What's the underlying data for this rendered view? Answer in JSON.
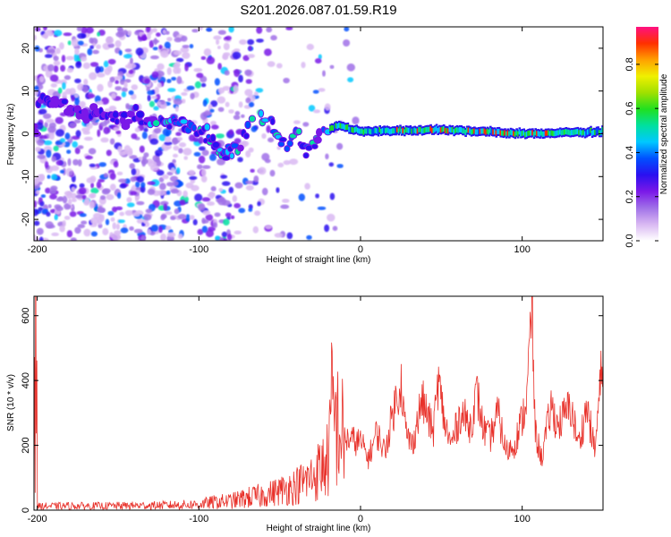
{
  "title": "S201.2026.087.01.59.R19",
  "chart_data": [
    {
      "type": "heatmap",
      "xlabel": "Height of straight line (km)",
      "ylabel": "Frequency (Hz)",
      "xlim": [
        -202,
        150
      ],
      "ylim": [
        -25,
        25
      ],
      "xticks": [
        -200,
        -100,
        0,
        100
      ],
      "yticks": [
        -20,
        -10,
        0,
        10,
        20
      ],
      "colorbar": {
        "label": "Normalized spectral amplitude",
        "range": [
          0,
          0.97
        ],
        "ticks": [
          "0.0",
          "0.2",
          "0.4",
          "0.6",
          "0.8"
        ],
        "colors": [
          "#ffffff",
          "#d9b8f2",
          "#a070e8",
          "#7a18e8",
          "#2a10f0",
          "#0050ff",
          "#00c8ff",
          "#00e0a0",
          "#20e020",
          "#a0e000",
          "#f0f000",
          "#ffa000",
          "#ff3000",
          "#ff1080"
        ]
      },
      "ridge": [
        {
          "x": -200,
          "f": 8
        },
        {
          "x": -170,
          "f": 5
        },
        {
          "x": -150,
          "f": 4
        },
        {
          "x": -125,
          "f": 3
        },
        {
          "x": -110,
          "f": 2
        },
        {
          "x": -95,
          "f": 0
        },
        {
          "x": -85,
          "f": -5
        },
        {
          "x": -75,
          "f": -3
        },
        {
          "x": -65,
          "f": 5
        },
        {
          "x": -55,
          "f": 2
        },
        {
          "x": -45,
          "f": -4
        },
        {
          "x": -40,
          "f": 1
        },
        {
          "x": -35,
          "f": -4
        },
        {
          "x": -25,
          "f": 0
        },
        {
          "x": -15,
          "f": 2
        },
        {
          "x": 0,
          "f": 0.5
        },
        {
          "x": 50,
          "f": 1
        },
        {
          "x": 100,
          "f": 0
        },
        {
          "x": 150,
          "f": 0.5
        }
      ]
    },
    {
      "type": "line",
      "xlabel": "Height of straight line (km)",
      "ylabel": "SNR (10 * v/v)",
      "xlim": [
        -202,
        150
      ],
      "ylim": [
        0,
        660
      ],
      "xticks": [
        -200,
        -100,
        0,
        100
      ],
      "yticks": [
        0,
        200,
        400,
        600
      ],
      "color": "#e8312a",
      "series": [
        {
          "name": "SNR",
          "x": [
            -200,
            -180,
            -160,
            -140,
            -120,
            -100,
            -90,
            -80,
            -70,
            -60,
            -50,
            -40,
            -30,
            -20,
            -18,
            -10,
            0,
            5,
            10,
            15,
            20,
            25,
            28,
            32,
            38,
            45,
            48,
            52,
            56,
            62,
            68,
            72,
            76,
            80,
            85,
            90,
            95,
            100,
            103,
            106,
            108,
            112,
            118,
            122,
            130,
            135,
            140,
            145,
            150
          ],
          "y": [
            12,
            13,
            13,
            14,
            15,
            18,
            25,
            28,
            38,
            45,
            60,
            75,
            100,
            155,
            300,
            220,
            210,
            160,
            240,
            180,
            300,
            400,
            240,
            200,
            340,
            240,
            400,
            270,
            200,
            300,
            260,
            360,
            250,
            220,
            300,
            180,
            200,
            280,
            350,
            640,
            240,
            160,
            320,
            260,
            320,
            200,
            320,
            180,
            490
          ]
        }
      ]
    }
  ]
}
